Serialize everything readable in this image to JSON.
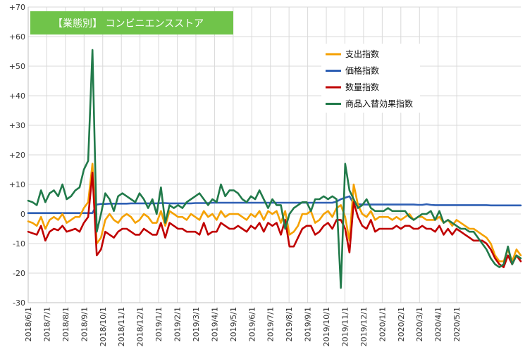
{
  "chart_data": {
    "type": "line",
    "title": "【業態別】 コンビニエンスストア",
    "ylim": [
      -30,
      70
    ],
    "yticks": [
      "-30",
      "-20",
      "-10",
      "0",
      "+10",
      "+20",
      "+30",
      "+40",
      "+50",
      "+60",
      "+70"
    ],
    "xticks": [
      "2018/6/1",
      "2018/7/1",
      "2018/8/1",
      "2018/9/1",
      "2018/10/1",
      "2018/11/1",
      "2018/12/1",
      "2019/1/1",
      "2019/2/1",
      "2019/3/1",
      "2019/4/1",
      "2019/5/1",
      "2019/6/1",
      "2019/7/1",
      "2019/8/1",
      "2019/9/1",
      "2019/10/1",
      "2019/11/1",
      "2019/12/1",
      "2020/1/1",
      "2020/2/1",
      "2020/3/1",
      "2020/4/1",
      "2020/5/1"
    ],
    "x_unit": "weeks",
    "legend_position": "right-middle",
    "colors": {
      "shishutsu": "#f5a100",
      "kakaku": "#2e5fb4",
      "suryo": "#c00000",
      "shohin": "#217a4a",
      "title_bg": "#70c44a"
    },
    "series": [
      {
        "name": "支出指数",
        "key": "shishutsu",
        "values": [
          -2.5,
          -3,
          -4,
          -1,
          -5,
          -2,
          -1,
          -2,
          0,
          -3,
          -2,
          -1,
          -1,
          2,
          4,
          17,
          -10,
          -8,
          -2,
          0,
          -2,
          -3,
          -1,
          0,
          -1,
          -3,
          -2,
          0,
          -1,
          -3,
          -3,
          1,
          -4,
          1,
          0,
          -1,
          -1,
          -2,
          0,
          -1,
          -2,
          1,
          -1,
          0,
          -2,
          1,
          -1,
          0,
          0,
          0,
          -1,
          -2,
          0,
          -1,
          1,
          -2,
          1,
          0,
          1,
          -3,
          1,
          -7,
          -6,
          -4,
          0,
          0,
          1,
          -3,
          -2,
          0,
          1,
          -1,
          2,
          3,
          -1,
          -9,
          10,
          3,
          0,
          -1,
          1,
          -2,
          -1,
          -1,
          -1,
          -2,
          -1,
          -2,
          -1,
          0,
          -2,
          -1,
          -1,
          -2,
          -2,
          -2,
          -1,
          -3,
          -2,
          -4,
          -2,
          -3,
          -4,
          -5,
          -5,
          -6,
          -7,
          -8,
          -10,
          -14,
          -16,
          -16,
          -12,
          -16,
          -12,
          -14
        ]
      },
      {
        "name": "価格指数",
        "key": "kakaku",
        "values": [
          0.3,
          0.3,
          0.3,
          0.3,
          0.3,
          0.3,
          0.3,
          0.3,
          0.3,
          0.3,
          0.3,
          0.3,
          0.3,
          0.3,
          0.3,
          0.3,
          3.2,
          3.4,
          3.4,
          3.5,
          3.5,
          3.5,
          3.5,
          3.5,
          3.6,
          3.6,
          3.6,
          3.6,
          3.6,
          3.6,
          3.6,
          3.7,
          3.7,
          3.6,
          3.6,
          3.6,
          3.6,
          3.6,
          3.6,
          3.7,
          3.7,
          3.7,
          3.7,
          3.8,
          3.8,
          3.8,
          3.8,
          3.8,
          3.8,
          3.8,
          3.8,
          3.8,
          3.8,
          3.8,
          3.8,
          3.8,
          3.8,
          3.8,
          3.8,
          3.8,
          3.8,
          3.8,
          3.8,
          3.8,
          3.8,
          3.8,
          3.8,
          3.8,
          3.8,
          3.8,
          3.8,
          3.8,
          4.2,
          5,
          5.5,
          6,
          3.5,
          3.3,
          3.2,
          3.2,
          3.2,
          3.2,
          3.2,
          3.2,
          3.2,
          3.2,
          3.2,
          3.2,
          3.2,
          3.2,
          3.2,
          3.1,
          3.1,
          3.3,
          3.1,
          3,
          3,
          3,
          3,
          3,
          3,
          3,
          3,
          3,
          3,
          3,
          3,
          3,
          2.9,
          2.9,
          2.9,
          2.9,
          2.9,
          2.9,
          2.9,
          2.9
        ]
      },
      {
        "name": "数量指数",
        "key": "suryo",
        "values": [
          -6,
          -6.5,
          -7,
          -4,
          -9,
          -6,
          -5,
          -5.5,
          -4,
          -6,
          -5.5,
          -5,
          -6,
          -3,
          -1,
          14,
          -14,
          -12,
          -6,
          -7,
          -8,
          -6,
          -5,
          -5,
          -6,
          -7,
          -7,
          -5,
          -6,
          -7,
          -7,
          -3,
          -8,
          -3,
          -4,
          -5,
          -5,
          -6,
          -6,
          -6,
          -7,
          -3,
          -7,
          -6,
          -6,
          -3,
          -4,
          -5,
          -5,
          -4,
          -5,
          -6,
          -4,
          -5,
          -3,
          -6,
          -3,
          -4,
          -3,
          -7,
          -2,
          -11,
          -11,
          -8,
          -5,
          -4,
          -4,
          -7,
          -6,
          -4,
          -3,
          -5,
          -2,
          -2,
          -5,
          -13,
          4,
          -1,
          -4,
          -5,
          -2,
          -6,
          -5,
          -5,
          -5,
          -5,
          -4,
          -5,
          -4,
          -4,
          -5,
          -5,
          -4,
          -5,
          -5,
          -6,
          -4,
          -7,
          -5,
          -7,
          -5,
          -6,
          -7,
          -8,
          -9,
          -9,
          -9,
          -10,
          -12,
          -15,
          -17,
          -18,
          -14,
          -17,
          -14,
          -16
        ]
      },
      {
        "name": "商品入替効果指数",
        "key": "shohin",
        "values": [
          4.5,
          4,
          3,
          8,
          4,
          7,
          8,
          6,
          10,
          5,
          6,
          8,
          9,
          15,
          18,
          55.5,
          -6,
          0,
          7,
          5,
          1,
          6,
          7,
          6,
          5,
          4,
          7,
          5,
          2,
          5,
          0,
          9,
          -3,
          3,
          2,
          3,
          2,
          4,
          5,
          6,
          7,
          5,
          3,
          5,
          4,
          10,
          6,
          8,
          8,
          7,
          5,
          4,
          6,
          5,
          8,
          5,
          2,
          5,
          3,
          3,
          -5,
          0,
          2,
          3,
          4,
          4,
          1,
          5,
          5,
          6,
          5,
          6,
          5,
          -25,
          17,
          8,
          5,
          2,
          3,
          5,
          2,
          1,
          1,
          1,
          2,
          1,
          1,
          1,
          1,
          -1,
          -2,
          -1,
          0,
          0,
          1,
          -2,
          1,
          -3,
          -2,
          -3,
          -4,
          -5,
          -5,
          -6,
          -6,
          -8,
          -10,
          -12,
          -15,
          -17,
          -18,
          -17,
          -11,
          -17,
          -14,
          -15
        ]
      }
    ]
  }
}
